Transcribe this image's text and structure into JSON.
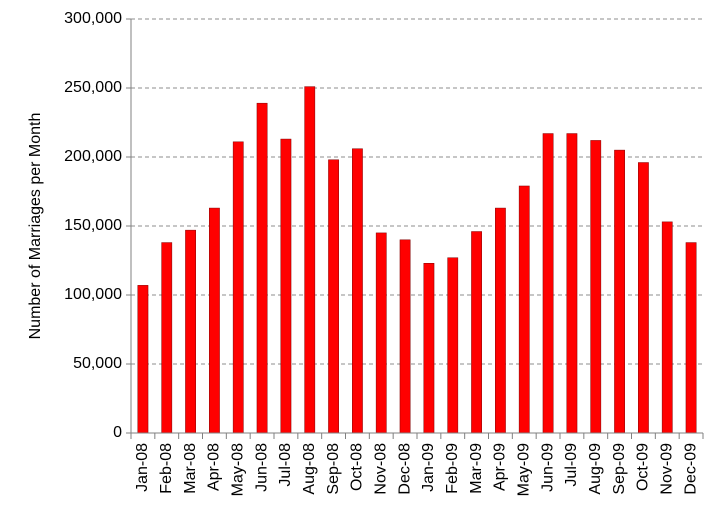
{
  "chart_data": {
    "type": "bar",
    "title": "",
    "xlabel": "",
    "ylabel": "Number of Marriages per Month",
    "ylim": [
      0,
      300000
    ],
    "yticks": [
      0,
      50000,
      100000,
      150000,
      200000,
      250000,
      300000
    ],
    "ytick_labels": [
      "0",
      "50,000",
      "100,000",
      "150,000",
      "200,000",
      "250,000",
      "300,000"
    ],
    "grid": "horizontal dashed",
    "legend": "none",
    "bar_color": "#ff0000",
    "categories": [
      "Jan-08",
      "Feb-08",
      "Mar-08",
      "Apr-08",
      "May-08",
      "Jun-08",
      "Jul-08",
      "Aug-08",
      "Sep-08",
      "Oct-08",
      "Nov-08",
      "Dec-08",
      "Jan-09",
      "Feb-09",
      "Mar-09",
      "Apr-09",
      "May-09",
      "Jun-09",
      "Jul-09",
      "Aug-09",
      "Sep-09",
      "Oct-09",
      "Nov-09",
      "Dec-09"
    ],
    "values": [
      107000,
      138000,
      147000,
      163000,
      211000,
      239000,
      213000,
      251000,
      198000,
      206000,
      145000,
      140000,
      123000,
      127000,
      146000,
      163000,
      179000,
      217000,
      217000,
      212000,
      205000,
      196000,
      153000,
      138000
    ]
  }
}
